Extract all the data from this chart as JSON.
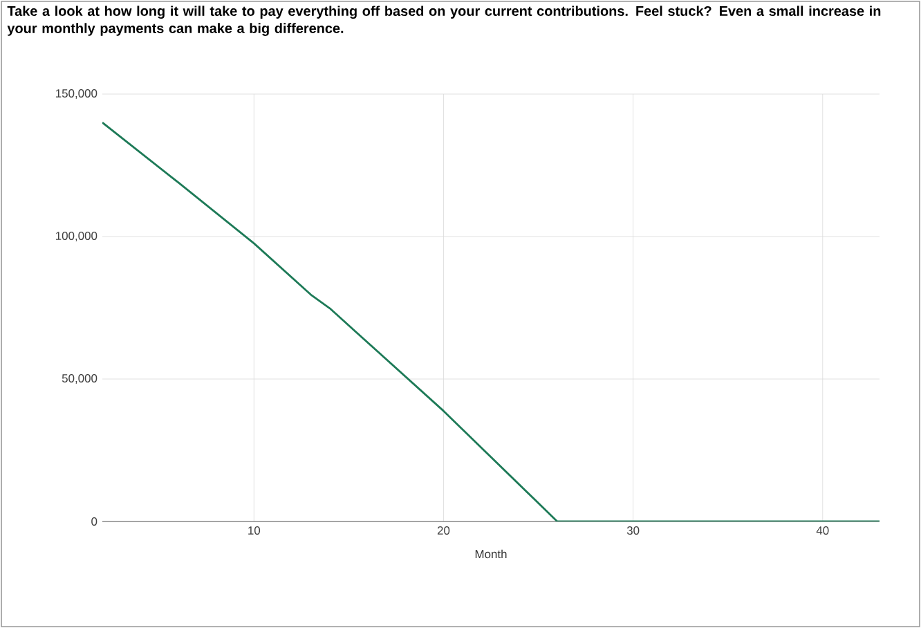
{
  "chart_data": {
    "type": "line",
    "title": "Take a look at how long it will take to pay everything off based on your current contributions. Feel stuck? Even a small increase in your monthly payments can make a big difference.",
    "xlabel": "Month",
    "series": [
      {
        "color": "#1d7a57",
        "x": [
          2,
          6,
          10,
          13,
          14,
          20,
          26,
          30,
          35,
          40,
          43
        ],
        "values": [
          140000,
          119000,
          97600,
          79600,
          74800,
          38800,
          0,
          0,
          0,
          0,
          0
        ]
      }
    ],
    "xlim": [
      2,
      43
    ],
    "ylim": [
      0,
      150000
    ],
    "xticks": [
      10,
      20,
      30,
      40
    ],
    "yticks": [
      {
        "value": 0,
        "label": "0"
      },
      {
        "value": 50000,
        "label": "50,000"
      },
      {
        "value": 100000,
        "label": "100,000"
      },
      {
        "value": 150000,
        "label": "150,000"
      }
    ],
    "grid": true,
    "marker": "none",
    "line_style": "solid"
  }
}
